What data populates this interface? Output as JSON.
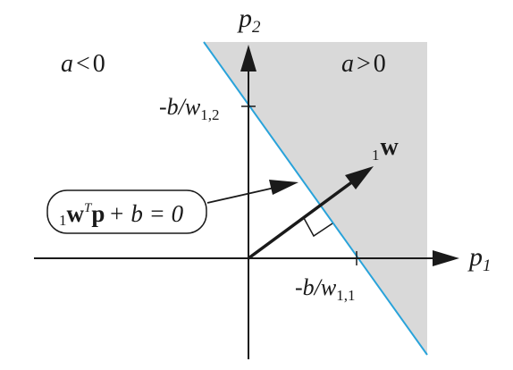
{
  "colors": {
    "background": "#ffffff",
    "shade": "#d9d9d9",
    "boundary_line": "#29a3da",
    "axes": "#1a1a1a",
    "text": "#1a1a1a"
  },
  "axes": {
    "x_label": "p",
    "x_label_sub": "1",
    "y_label": "p",
    "y_label_sub": "2"
  },
  "regions": {
    "negative": {
      "var": "a",
      "op": "<",
      "val": "0"
    },
    "positive": {
      "var": "a",
      "op": ">",
      "val": "0"
    }
  },
  "intercepts": {
    "vertical": {
      "prefix": "-b/w",
      "sub": "1,2"
    },
    "horizontal": {
      "prefix": "-b/w",
      "sub": "1,1"
    }
  },
  "weight_vector": {
    "pre_sub": "1",
    "symbol": "w"
  },
  "boundary_equation": {
    "pre_sub": "1",
    "w": "w",
    "sup": "T",
    "p": "p",
    "rest": "+ b = 0"
  }
}
